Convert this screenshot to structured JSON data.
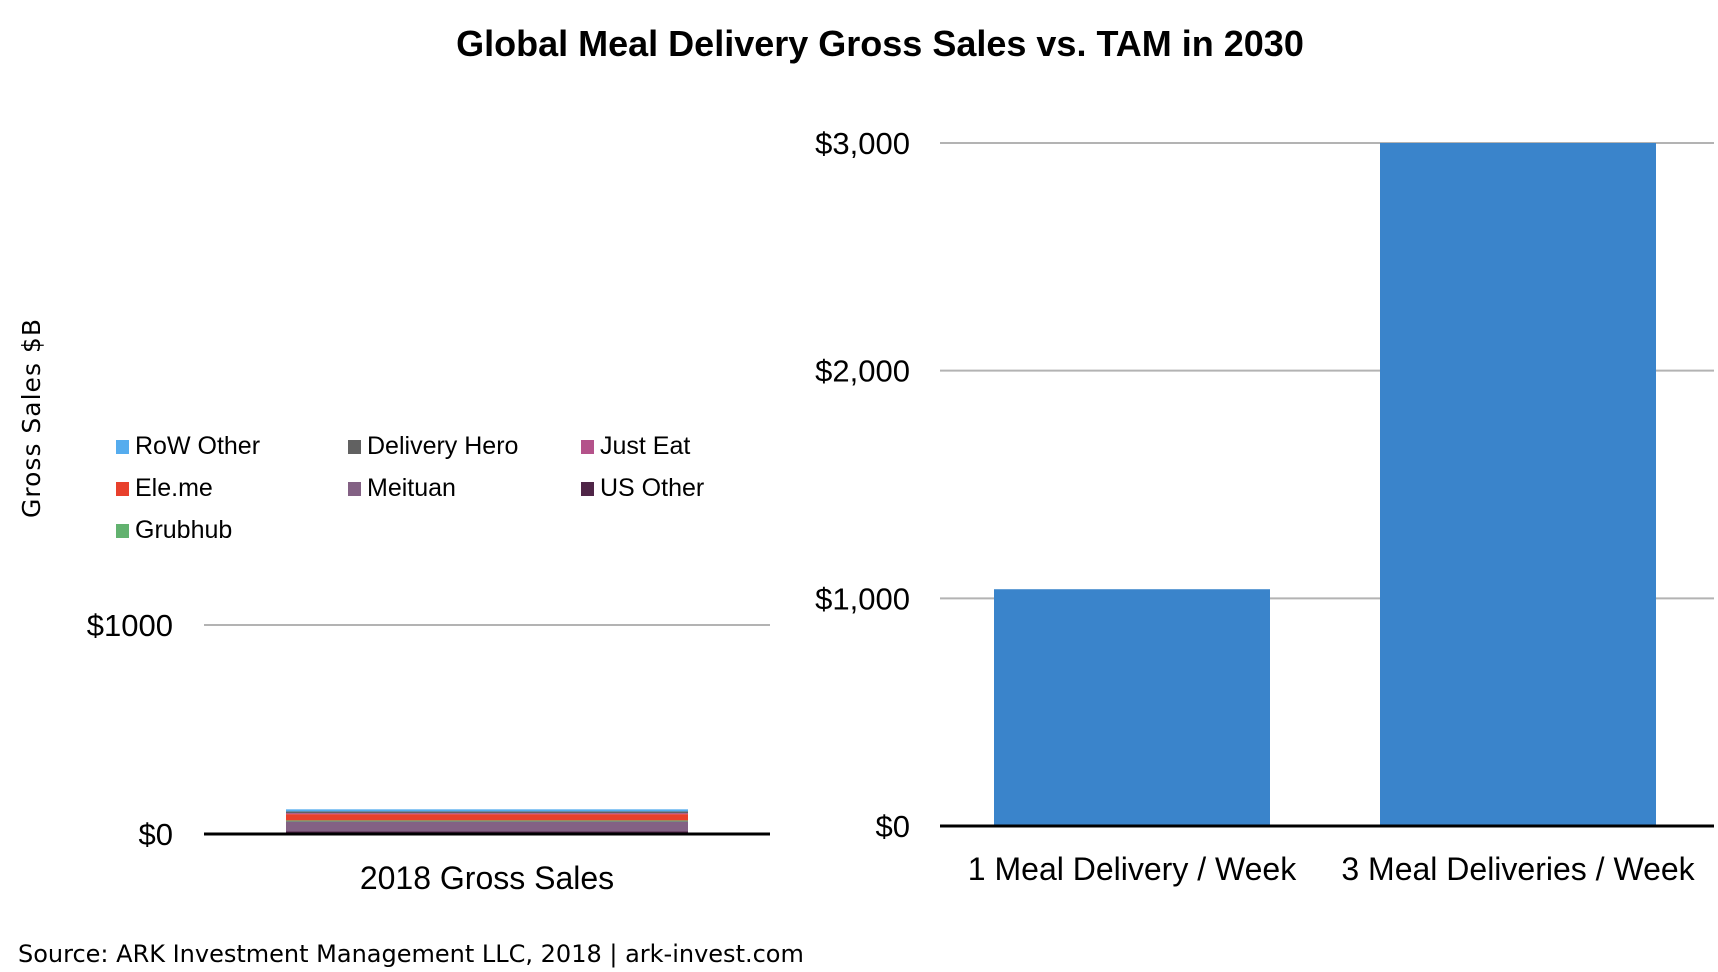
{
  "chart_data": [
    {
      "type": "bar",
      "stacked": true,
      "title": "Global Meal Delivery Gross Sales vs. TAM in 2030",
      "ylabel": "Gross Sales $B",
      "xlabel": "",
      "categories": [
        "2018 Gross Sales"
      ],
      "ylim": [
        0,
        1000
      ],
      "yticks": [
        0,
        1000
      ],
      "ytick_labels": [
        "$0",
        "$1000"
      ],
      "grid": true,
      "legend_position": "top-left",
      "series": [
        {
          "name": "US Other",
          "color": "#4F2547",
          "values": [
            12
          ]
        },
        {
          "name": "Meituan",
          "color": "#836184",
          "values": [
            48
          ]
        },
        {
          "name": "Grubhub",
          "color": "#62B26F",
          "values": [
            5
          ]
        },
        {
          "name": "Ele.me",
          "color": "#E8402C",
          "values": [
            30
          ]
        },
        {
          "name": "Just Eat",
          "color": "#B4528A",
          "values": [
            5
          ]
        },
        {
          "name": "Delivery Hero",
          "color": "#616161",
          "values": [
            8
          ]
        },
        {
          "name": "RoW Other",
          "color": "#55ACEE",
          "values": [
            10
          ]
        }
      ],
      "legend_order": [
        "RoW Other",
        "Delivery Hero",
        "Just Eat",
        "Ele.me",
        "Meituan",
        "US Other",
        "Grubhub"
      ]
    },
    {
      "type": "bar",
      "title": "",
      "xlabel": "",
      "ylabel": "",
      "categories": [
        "1 Meal Delivery / Week",
        "3 Meal Deliveries / Week"
      ],
      "values": [
        1040,
        3000
      ],
      "color": "#3A84CB",
      "ylim": [
        0,
        3000
      ],
      "yticks": [
        0,
        1000,
        2000,
        3000
      ],
      "ytick_labels": [
        "$0",
        "$1,000",
        "$2,000",
        "$3,000"
      ],
      "grid": true
    }
  ],
  "footer": "Source: ARK Investment Management LLC, 2018 | ark-invest.com"
}
